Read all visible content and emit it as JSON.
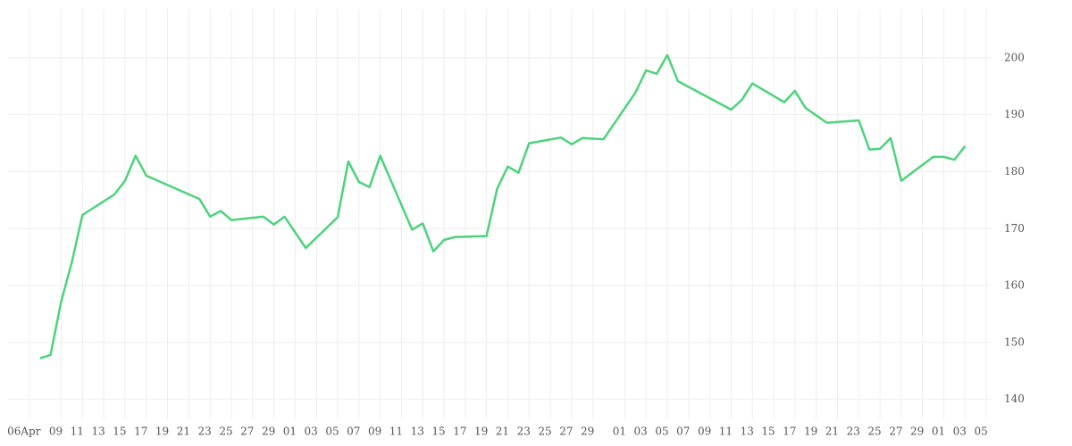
{
  "chart_data": {
    "type": "line",
    "color": "#4cd37b",
    "grid": true,
    "x": [
      "04-07",
      "04-08",
      "04-09",
      "04-10",
      "04-11",
      "04-14",
      "04-15",
      "04-16",
      "04-17",
      "04-22",
      "04-23",
      "04-24",
      "04-25",
      "04-28",
      "04-29",
      "04-30",
      "05-02",
      "05-05",
      "05-06",
      "05-07",
      "05-08",
      "05-09",
      "05-12",
      "05-13",
      "05-14",
      "05-15",
      "05-16",
      "05-19",
      "05-20",
      "05-21",
      "05-22",
      "05-23",
      "05-26",
      "05-27",
      "05-28",
      "05-30",
      "06-02",
      "06-03",
      "06-04",
      "06-05",
      "06-06",
      "06-11",
      "06-12",
      "06-13",
      "06-16",
      "06-17",
      "06-18",
      "06-20",
      "06-23",
      "06-24",
      "06-25",
      "06-26",
      "06-27",
      "06-30",
      "07-01",
      "07-02",
      "07-03"
    ],
    "values": [
      147.2,
      147.8,
      157.2,
      164.1,
      172.4,
      176.0,
      178.4,
      182.8,
      179.3,
      175.2,
      172.1,
      173.1,
      171.5,
      172.1,
      170.7,
      172.1,
      166.6,
      172.0,
      181.8,
      178.2,
      177.3,
      182.8,
      169.8,
      170.9,
      166.0,
      168.0,
      168.5,
      168.7,
      177.0,
      180.9,
      179.8,
      185.0,
      186.0,
      184.8,
      185.9,
      185.7,
      193.9,
      197.8,
      197.2,
      200.5,
      195.9,
      190.9,
      192.6,
      195.5,
      192.2,
      194.2,
      191.2,
      188.6,
      189.0,
      183.9,
      184.0,
      185.9,
      178.4,
      182.6,
      182.6,
      182.1,
      184.5
    ],
    "xlim": [
      "04-04",
      "07-06"
    ],
    "xticks": [
      {
        "value": "04-06",
        "label": "06Apr"
      },
      {
        "value": "04-09",
        "label": "09"
      },
      {
        "value": "04-11",
        "label": "11"
      },
      {
        "value": "04-13",
        "label": "13"
      },
      {
        "value": "04-15",
        "label": "15"
      },
      {
        "value": "04-17",
        "label": "17"
      },
      {
        "value": "04-19",
        "label": "19"
      },
      {
        "value": "04-21",
        "label": "21"
      },
      {
        "value": "04-23",
        "label": "23"
      },
      {
        "value": "04-25",
        "label": "25"
      },
      {
        "value": "04-27",
        "label": "27"
      },
      {
        "value": "04-29",
        "label": "29"
      },
      {
        "value": "05-01",
        "label": "01"
      },
      {
        "value": "05-03",
        "label": "03"
      },
      {
        "value": "05-05",
        "label": "05"
      },
      {
        "value": "05-07",
        "label": "07"
      },
      {
        "value": "05-09",
        "label": "09"
      },
      {
        "value": "05-11",
        "label": "11"
      },
      {
        "value": "05-13",
        "label": "13"
      },
      {
        "value": "05-15",
        "label": "15"
      },
      {
        "value": "05-17",
        "label": "17"
      },
      {
        "value": "05-19",
        "label": "19"
      },
      {
        "value": "05-21",
        "label": "21"
      },
      {
        "value": "05-23",
        "label": "23"
      },
      {
        "value": "05-25",
        "label": "25"
      },
      {
        "value": "05-27",
        "label": "27"
      },
      {
        "value": "05-29",
        "label": "29"
      },
      {
        "value": "06-01",
        "label": "01"
      },
      {
        "value": "06-03",
        "label": "03"
      },
      {
        "value": "06-05",
        "label": "05"
      },
      {
        "value": "06-07",
        "label": "07"
      },
      {
        "value": "06-09",
        "label": "09"
      },
      {
        "value": "06-11",
        "label": "11"
      },
      {
        "value": "06-13",
        "label": "13"
      },
      {
        "value": "06-15",
        "label": "15"
      },
      {
        "value": "06-17",
        "label": "17"
      },
      {
        "value": "06-19",
        "label": "19"
      },
      {
        "value": "06-21",
        "label": "21"
      },
      {
        "value": "06-23",
        "label": "23"
      },
      {
        "value": "06-25",
        "label": "25"
      },
      {
        "value": "06-27",
        "label": "27"
      },
      {
        "value": "06-29",
        "label": "29"
      },
      {
        "value": "07-01",
        "label": "01"
      },
      {
        "value": "07-03",
        "label": "03"
      },
      {
        "value": "07-05",
        "label": "05"
      }
    ],
    "ylim": [
      136.5,
      208.6
    ],
    "yticks": [
      140,
      150,
      160,
      170,
      180,
      190,
      200
    ]
  }
}
